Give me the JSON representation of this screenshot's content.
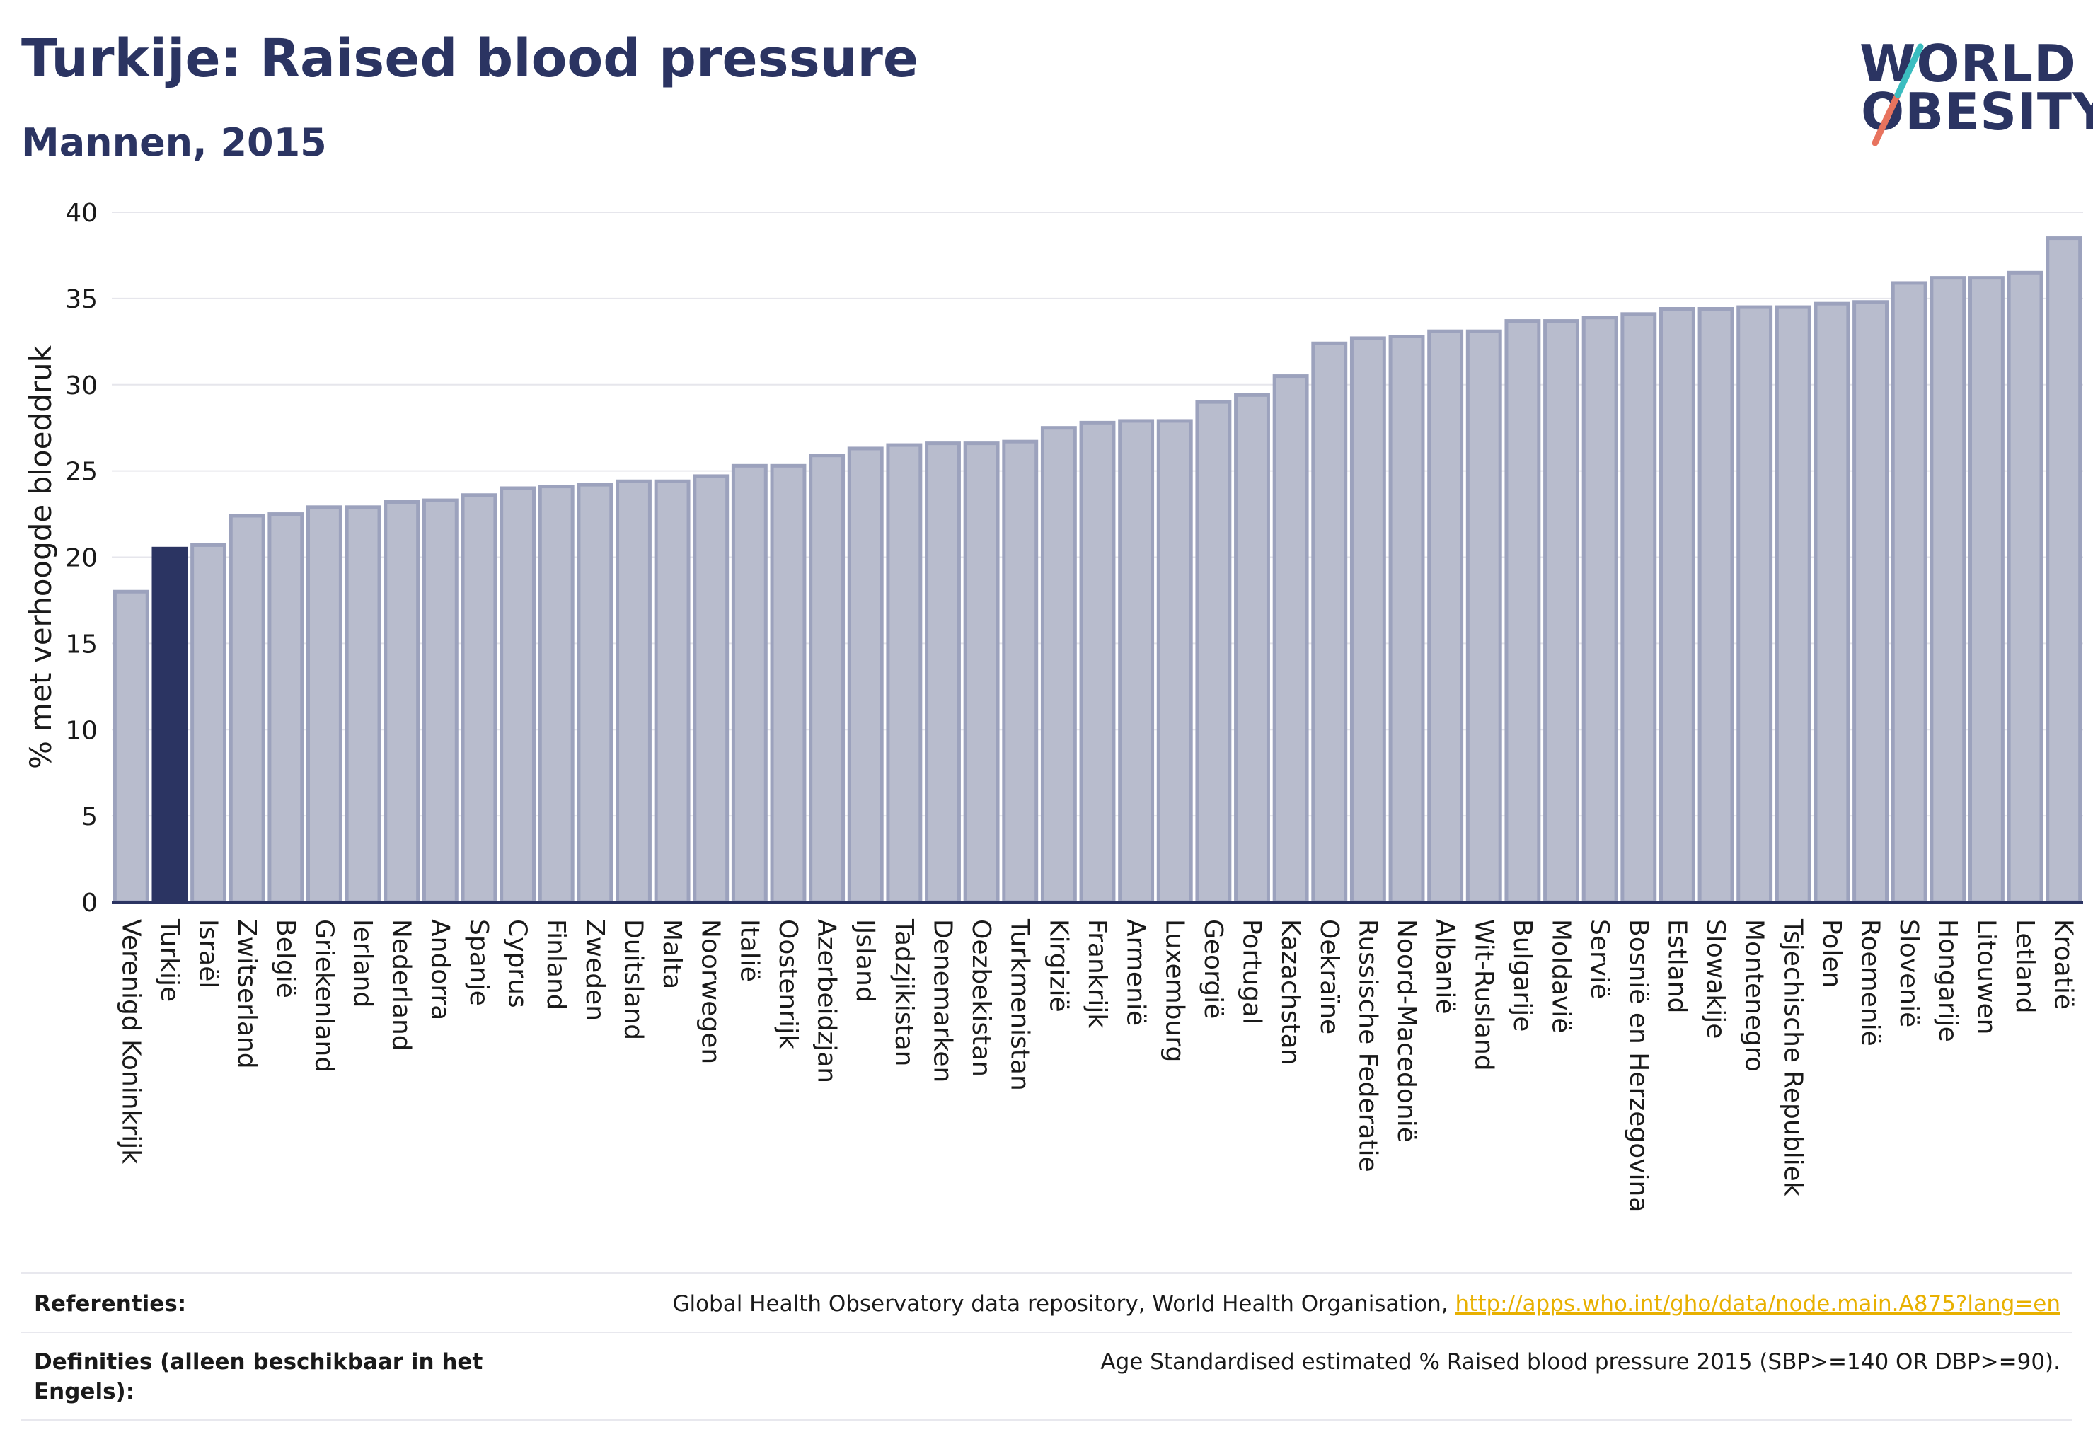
{
  "title": "Turkije: Raised blood pressure",
  "subtitle": "Mannen, 2015",
  "logo": {
    "line1": "WORLD",
    "line2": "OBESITY",
    "colors": {
      "teal": "#3bbdc0",
      "coral": "#e8735e"
    }
  },
  "colors": {
    "bar": "#b8bccd",
    "bar_edge": "#9ca2bd",
    "highlight": "#2b3462",
    "grid": "#e6e6ec",
    "axis": "#2b3462",
    "link": "#e8b000"
  },
  "chart_data": {
    "type": "bar",
    "ylabel": "% met verhoogde bloeddruk",
    "ylim": [
      0,
      40
    ],
    "yticks": [
      0,
      5,
      10,
      15,
      20,
      25,
      30,
      35,
      40
    ],
    "highlight": "Turkije",
    "grid": true,
    "categories": [
      "Verenigd Koninkrijk",
      "Turkije",
      "Israël",
      "Zwitserland",
      "België",
      "Griekenland",
      "Ierland",
      "Nederland",
      "Andorra",
      "Spanje",
      "Cyprus",
      "Finland",
      "Zweden",
      "Duitsland",
      "Malta",
      "Noorwegen",
      "Italië",
      "Oostenrijk",
      "Azerbeidzjan",
      "IJsland",
      "Tadzjikistan",
      "Denemarken",
      "Oezbekistan",
      "Turkmenistan",
      "Kirgizië",
      "Frankrijk",
      "Armenië",
      "Luxemburg",
      "Georgië",
      "Portugal",
      "Kazachstan",
      "Oekraïne",
      "Russische Federatie",
      "Noord-Macedonië",
      "Albanië",
      "Wit-Rusland",
      "Bulgarije",
      "Moldavië",
      "Servië",
      "Bosnië en Herzegovina",
      "Estland",
      "Slowakije",
      "Montenegro",
      "Tsjechische Republiek",
      "Polen",
      "Roemenië",
      "Slovenië",
      "Hongarije",
      "Litouwen",
      "Letland",
      "Kroatië"
    ],
    "values": [
      18.0,
      20.5,
      20.7,
      22.4,
      22.5,
      22.9,
      22.9,
      23.2,
      23.3,
      23.6,
      24.0,
      24.1,
      24.2,
      24.4,
      24.4,
      24.7,
      25.3,
      25.3,
      25.9,
      26.3,
      26.5,
      26.6,
      26.6,
      26.7,
      27.5,
      27.8,
      27.9,
      27.9,
      29.0,
      29.4,
      30.5,
      32.4,
      32.7,
      32.8,
      33.1,
      33.1,
      33.7,
      33.7,
      33.9,
      34.1,
      34.4,
      34.4,
      34.5,
      34.5,
      34.7,
      34.8,
      35.9,
      36.2,
      36.2,
      36.5,
      38.5
    ]
  },
  "footer": {
    "references_label": "Referenties:",
    "references_text": "Global Health Observatory data repository, World Health Organisation,",
    "references_link": "http://apps.who.int/gho/data/node.main.A875?lang=en",
    "definitions_label": "Definities (alleen beschikbaar in het Engels):",
    "definitions_text": "Age Standardised estimated % Raised blood pressure 2015 (SBP>=140 OR DBP>=90)."
  }
}
